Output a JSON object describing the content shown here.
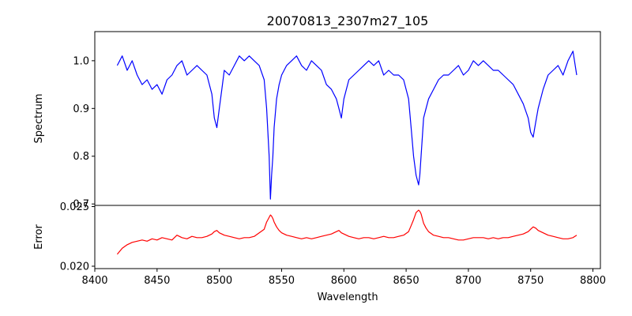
{
  "chart_data": [
    {
      "type": "line",
      "panel": "top",
      "title": "20070813_2307m27_105",
      "xlabel": "",
      "ylabel": "Spectrum",
      "xlim": [
        8400,
        8806
      ],
      "ylim": [
        0.697,
        1.061
      ],
      "yticks": [
        "0.7",
        "0.8",
        "0.9",
        "1.0"
      ],
      "grid": false,
      "series": [
        {
          "color": "#0000ff",
          "x": [
            8418,
            8422,
            8426,
            8430,
            8434,
            8438,
            8442,
            8446,
            8450,
            8454,
            8458,
            8462,
            8466,
            8470,
            8474,
            8478,
            8482,
            8486,
            8490,
            8494,
            8496,
            8498,
            8500,
            8502,
            8504,
            8508,
            8512,
            8516,
            8520,
            8524,
            8528,
            8532,
            8536,
            8538,
            8540,
            8541,
            8542,
            8543,
            8544,
            8546,
            8548,
            8550,
            8554,
            8558,
            8562,
            8566,
            8570,
            8574,
            8578,
            8582,
            8586,
            8590,
            8594,
            8596,
            8598,
            8600,
            8604,
            8608,
            8612,
            8616,
            8620,
            8624,
            8628,
            8632,
            8636,
            8640,
            8644,
            8648,
            8652,
            8654,
            8656,
            8658,
            8660,
            8661,
            8662,
            8663,
            8664,
            8666,
            8668,
            8672,
            8676,
            8680,
            8684,
            8688,
            8692,
            8696,
            8700,
            8704,
            8708,
            8712,
            8716,
            8720,
            8724,
            8728,
            8732,
            8736,
            8740,
            8744,
            8748,
            8750,
            8752,
            8754,
            8756,
            8760,
            8764,
            8768,
            8772,
            8776,
            8780,
            8784,
            8787
          ],
          "y": [
            0.99,
            1.01,
            0.98,
            1.0,
            0.97,
            0.95,
            0.96,
            0.94,
            0.95,
            0.93,
            0.96,
            0.97,
            0.99,
            1.0,
            0.97,
            0.98,
            0.99,
            0.98,
            0.97,
            0.93,
            0.88,
            0.86,
            0.9,
            0.94,
            0.98,
            0.97,
            0.99,
            1.01,
            1.0,
            1.01,
            1.0,
            0.99,
            0.96,
            0.9,
            0.8,
            0.71,
            0.76,
            0.8,
            0.86,
            0.92,
            0.95,
            0.97,
            0.99,
            1.0,
            1.01,
            0.99,
            0.98,
            1.0,
            0.99,
            0.98,
            0.95,
            0.94,
            0.92,
            0.9,
            0.88,
            0.92,
            0.96,
            0.97,
            0.98,
            0.99,
            1.0,
            0.99,
            1.0,
            0.97,
            0.98,
            0.97,
            0.97,
            0.96,
            0.92,
            0.86,
            0.8,
            0.76,
            0.74,
            0.76,
            0.8,
            0.84,
            0.88,
            0.9,
            0.92,
            0.94,
            0.96,
            0.97,
            0.97,
            0.98,
            0.99,
            0.97,
            0.98,
            1.0,
            0.99,
            1.0,
            0.99,
            0.98,
            0.98,
            0.97,
            0.96,
            0.95,
            0.93,
            0.91,
            0.88,
            0.85,
            0.84,
            0.87,
            0.9,
            0.94,
            0.97,
            0.98,
            0.99,
            0.97,
            1.0,
            1.02,
            0.97
          ]
        }
      ]
    },
    {
      "type": "line",
      "panel": "bottom",
      "xlabel": "Wavelength",
      "ylabel": "Error",
      "xlim": [
        8400,
        8806
      ],
      "ylim": [
        0.0198,
        0.0251
      ],
      "xticks": [
        "8400",
        "8450",
        "8500",
        "8550",
        "8600",
        "8650",
        "8700",
        "8750",
        "8800"
      ],
      "yticks": [
        "0.020",
        "0.025"
      ],
      "grid": false,
      "series": [
        {
          "color": "#ff0000",
          "x": [
            8418,
            8422,
            8426,
            8430,
            8434,
            8438,
            8442,
            8446,
            8450,
            8454,
            8458,
            8462,
            8466,
            8470,
            8474,
            8478,
            8482,
            8486,
            8490,
            8494,
            8496,
            8498,
            8500,
            8502,
            8504,
            8508,
            8512,
            8516,
            8520,
            8524,
            8528,
            8532,
            8536,
            8538,
            8540,
            8541,
            8542,
            8543,
            8544,
            8546,
            8548,
            8550,
            8554,
            8558,
            8562,
            8566,
            8570,
            8574,
            8578,
            8582,
            8586,
            8590,
            8594,
            8596,
            8598,
            8600,
            8604,
            8608,
            8612,
            8616,
            8620,
            8624,
            8628,
            8632,
            8636,
            8640,
            8644,
            8648,
            8652,
            8654,
            8656,
            8658,
            8660,
            8661,
            8662,
            8663,
            8664,
            8666,
            8668,
            8672,
            8676,
            8680,
            8684,
            8688,
            8692,
            8696,
            8700,
            8704,
            8708,
            8712,
            8716,
            8720,
            8724,
            8728,
            8732,
            8736,
            8740,
            8744,
            8748,
            8750,
            8752,
            8754,
            8756,
            8760,
            8764,
            8768,
            8772,
            8776,
            8780,
            8784,
            8787
          ],
          "y": [
            0.021,
            0.0215,
            0.0218,
            0.022,
            0.0221,
            0.0222,
            0.0221,
            0.0223,
            0.0222,
            0.0224,
            0.0223,
            0.0222,
            0.0226,
            0.0224,
            0.0223,
            0.0225,
            0.0224,
            0.0224,
            0.0225,
            0.0227,
            0.0229,
            0.023,
            0.0228,
            0.0227,
            0.0226,
            0.0225,
            0.0224,
            0.0223,
            0.0224,
            0.0224,
            0.0225,
            0.0228,
            0.0231,
            0.0237,
            0.0241,
            0.0243,
            0.0242,
            0.024,
            0.0237,
            0.0233,
            0.023,
            0.0228,
            0.0226,
            0.0225,
            0.0224,
            0.0223,
            0.0224,
            0.0223,
            0.0224,
            0.0225,
            0.0226,
            0.0227,
            0.0229,
            0.023,
            0.0228,
            0.0227,
            0.0225,
            0.0224,
            0.0223,
            0.0224,
            0.0224,
            0.0223,
            0.0224,
            0.0225,
            0.0224,
            0.0224,
            0.0225,
            0.0226,
            0.0229,
            0.0234,
            0.0239,
            0.0245,
            0.0247,
            0.0246,
            0.0244,
            0.024,
            0.0236,
            0.0232,
            0.0229,
            0.0226,
            0.0225,
            0.0224,
            0.0224,
            0.0223,
            0.0222,
            0.0222,
            0.0223,
            0.0224,
            0.0224,
            0.0224,
            0.0223,
            0.0224,
            0.0223,
            0.0224,
            0.0224,
            0.0225,
            0.0226,
            0.0227,
            0.0229,
            0.0231,
            0.0233,
            0.0232,
            0.023,
            0.0228,
            0.0226,
            0.0225,
            0.0224,
            0.0223,
            0.0223,
            0.0224,
            0.0226
          ]
        }
      ]
    }
  ]
}
